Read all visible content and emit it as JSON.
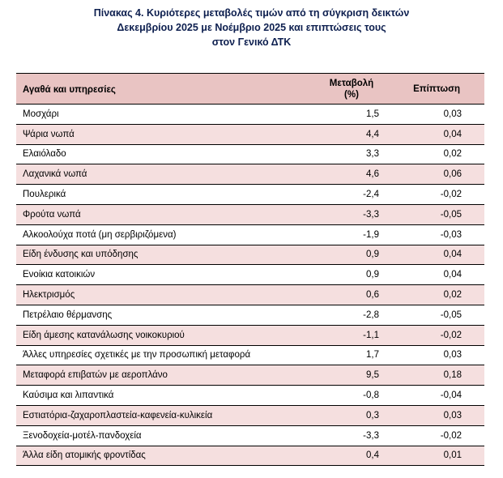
{
  "title": {
    "line1": "Πίνακας  4. Κυριότερες μεταβολές τιμών από τη σύγκριση δεικτών",
    "line2": "Δεκεμβρίου 2025 με Νοέμβριο 2025 και επιπτώσεις τους",
    "line3": "στον Γενικό ΔΤΚ"
  },
  "header": {
    "goods": "Αγαθά και υπηρεσίες",
    "change_line1": "Μεταβολή",
    "change_line2": "(%)",
    "effect": "Επίπτωση"
  },
  "rows": [
    {
      "name": "Μοσχάρι",
      "change": "1,5",
      "effect": "0,03"
    },
    {
      "name": "Ψάρια νωπά",
      "change": "4,4",
      "effect": "0,04"
    },
    {
      "name": "Ελαιόλαδο",
      "change": "3,3",
      "effect": "0,02"
    },
    {
      "name": "Λαχανικά νωπά",
      "change": "4,6",
      "effect": "0,06"
    },
    {
      "name": "Πουλερικά",
      "change": "-2,4",
      "effect": "-0,02"
    },
    {
      "name": "Φρούτα νωπά",
      "change": "-3,3",
      "effect": "-0,05"
    },
    {
      "name": "Αλκοολούχα ποτά (μη σερβιριζόμενα)",
      "change": "-1,9",
      "effect": "-0,03"
    },
    {
      "name": "Είδη ένδυσης και υπόδησης",
      "change": "0,9",
      "effect": "0,04"
    },
    {
      "name": "Ενοίκια κατοικιών",
      "change": "0,9",
      "effect": "0,04"
    },
    {
      "name": "Ηλεκτρισμός",
      "change": "0,6",
      "effect": "0,02"
    },
    {
      "name": "Πετρέλαιο θέρμανσης",
      "change": "-2,8",
      "effect": "-0,05"
    },
    {
      "name": "Είδη άμεσης κατανάλωσης νοικοκυριού",
      "change": "-1,1",
      "effect": "-0,02"
    },
    {
      "name": "Άλλες υπηρεσίες σχετικές με την προσωπική μεταφορά",
      "change": "1,7",
      "effect": "0,03"
    },
    {
      "name": "Μεταφορά επιβατών με αεροπλάνο",
      "change": "9,5",
      "effect": "0,18"
    },
    {
      "name": "Καύσιμα και λιπαντικά",
      "change": "-0,8",
      "effect": "-0,04"
    },
    {
      "name": "Εστιατόρια-ζαχαροπλαστεία-καφενεία-κυλικεία",
      "change": "0,3",
      "effect": "0,03"
    },
    {
      "name": "Ξενοδοχεία-μοτέλ-πανδοχεία",
      "change": "-3,3",
      "effect": "-0,02"
    },
    {
      "name": "Άλλα είδη ατομικής φροντίδας",
      "change": "0,4",
      "effect": "0,01"
    }
  ]
}
